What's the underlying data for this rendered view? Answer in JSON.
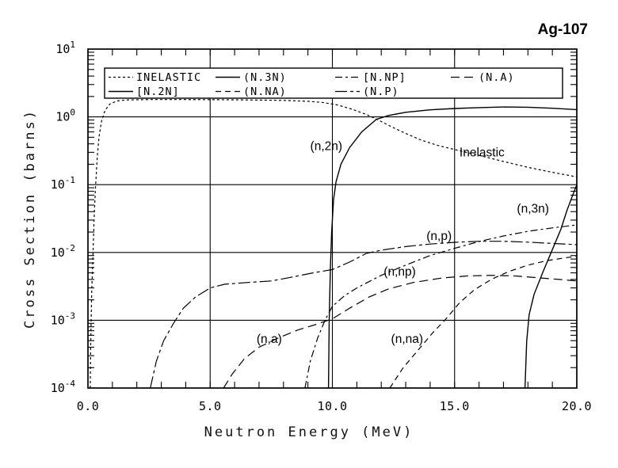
{
  "page": {
    "window_title": "Ag-107"
  },
  "chart_data": {
    "type": "line",
    "title": "Ag-107",
    "xlabel": "Neutron Energy (MeV)",
    "ylabel": "Cross Section (barns)",
    "xlim": [
      0,
      20
    ],
    "ylim": [
      0.0001,
      10
    ],
    "y_scale": "log",
    "grid": "major-lines-on",
    "x_minor_tick_step": 1,
    "x_ticks": [
      {
        "value": 0,
        "label": "0.0"
      },
      {
        "value": 5,
        "label": "5.0"
      },
      {
        "value": 10,
        "label": "10.0"
      },
      {
        "value": 15,
        "label": "15.0"
      },
      {
        "value": 20,
        "label": "20.0"
      }
    ],
    "y_ticks": [
      {
        "value": 10,
        "base": "10",
        "exp": "1"
      },
      {
        "value": 1,
        "base": "10",
        "exp": "0"
      },
      {
        "value": 0.1,
        "base": "10",
        "exp": "-1"
      },
      {
        "value": 0.01,
        "base": "10",
        "exp": "-2"
      },
      {
        "value": 0.001,
        "base": "10",
        "exp": "-3"
      },
      {
        "value": 0.0001,
        "base": "10",
        "exp": "-4"
      }
    ],
    "legend": {
      "position": "top-inside",
      "rows": 2,
      "entries": [
        {
          "series": "inelastic",
          "label": "INELASTIC",
          "row": 0,
          "col": 0
        },
        {
          "series": "n3n",
          "label": "(N.3N)",
          "row": 0,
          "col": 1
        },
        {
          "series": "nnp",
          "label": "[N.NP]",
          "row": 0,
          "col": 2
        },
        {
          "series": "na",
          "label": "(N.A)",
          "row": 0,
          "col": 3
        },
        {
          "series": "n2n",
          "label": "[N.2N]",
          "row": 1,
          "col": 0
        },
        {
          "series": "nna",
          "label": "(N.NA)",
          "row": 1,
          "col": 1
        },
        {
          "series": "np",
          "label": "(N.P)",
          "row": 1,
          "col": 2
        }
      ]
    },
    "annotations": [
      {
        "text": "(n,2n)",
        "x": 9.75,
        "y": 0.37,
        "anchor": "middle"
      },
      {
        "text": "Inelastic",
        "x": 15.2,
        "y": 0.3,
        "anchor": "start"
      },
      {
        "text": "(n,3n)",
        "x": 17.55,
        "y": 0.044,
        "anchor": "start"
      },
      {
        "text": "(n,p)",
        "x": 13.85,
        "y": 0.0175,
        "anchor": "start"
      },
      {
        "text": "(n,np)",
        "x": 12.1,
        "y": 0.0052,
        "anchor": "start"
      },
      {
        "text": "(n,a)",
        "x": 6.9,
        "y": 0.00053,
        "anchor": "start"
      },
      {
        "text": "(n,na)",
        "x": 12.4,
        "y": 0.00053,
        "anchor": "start"
      }
    ],
    "series": [
      {
        "id": "inelastic",
        "legend_label": "INELASTIC",
        "reaction": "inelastic scattering",
        "points": [
          [
            0.095,
            0.0001
          ],
          [
            0.11,
            0.0004
          ],
          [
            0.13,
            0.001
          ],
          [
            0.16,
            0.003
          ],
          [
            0.2,
            0.008
          ],
          [
            0.25,
            0.03
          ],
          [
            0.3,
            0.08
          ],
          [
            0.38,
            0.25
          ],
          [
            0.45,
            0.5
          ],
          [
            0.55,
            0.85
          ],
          [
            0.7,
            1.25
          ],
          [
            0.9,
            1.55
          ],
          [
            1.2,
            1.72
          ],
          [
            1.6,
            1.78
          ],
          [
            2.5,
            1.8
          ],
          [
            4,
            1.8
          ],
          [
            6,
            1.79
          ],
          [
            8,
            1.75
          ],
          [
            9,
            1.7
          ],
          [
            9.6,
            1.63
          ],
          [
            10.2,
            1.5
          ],
          [
            10.8,
            1.3
          ],
          [
            11.4,
            1.08
          ],
          [
            11.8,
            0.93
          ],
          [
            12.4,
            0.72
          ],
          [
            13,
            0.57
          ],
          [
            13.6,
            0.46
          ],
          [
            14.3,
            0.38
          ],
          [
            15,
            0.33
          ],
          [
            16,
            0.27
          ],
          [
            17,
            0.22
          ],
          [
            18,
            0.18
          ],
          [
            19,
            0.152
          ],
          [
            20,
            0.13
          ]
        ]
      },
      {
        "id": "n2n",
        "legend_label": "[N.2N]",
        "reaction": "(n,2n)",
        "points": [
          [
            9.84,
            0.0001
          ],
          [
            9.87,
            0.001
          ],
          [
            9.92,
            0.006
          ],
          [
            9.97,
            0.02
          ],
          [
            10.05,
            0.06
          ],
          [
            10.15,
            0.11
          ],
          [
            10.35,
            0.2
          ],
          [
            10.7,
            0.35
          ],
          [
            11.2,
            0.6
          ],
          [
            11.8,
            0.92
          ],
          [
            12.3,
            1.05
          ],
          [
            13,
            1.17
          ],
          [
            14,
            1.27
          ],
          [
            15,
            1.33
          ],
          [
            16,
            1.37
          ],
          [
            17,
            1.4
          ],
          [
            18,
            1.39
          ],
          [
            19,
            1.34
          ],
          [
            20,
            1.28
          ]
        ]
      },
      {
        "id": "n3n",
        "legend_label": "(N.3N)",
        "reaction": "(n,3n)",
        "points": [
          [
            17.88,
            0.0001
          ],
          [
            17.95,
            0.0005
          ],
          [
            18.05,
            0.0012
          ],
          [
            18.25,
            0.0024
          ],
          [
            18.6,
            0.005
          ],
          [
            19,
            0.011
          ],
          [
            19.35,
            0.022
          ],
          [
            19.6,
            0.042
          ],
          [
            19.8,
            0.065
          ],
          [
            20,
            0.1
          ]
        ]
      },
      {
        "id": "np",
        "legend_label": "(N.P)",
        "reaction": "(n,p)",
        "points": [
          [
            2.55,
            0.0001
          ],
          [
            2.8,
            0.00025
          ],
          [
            3.1,
            0.0005
          ],
          [
            3.5,
            0.0009
          ],
          [
            3.9,
            0.0015
          ],
          [
            4.4,
            0.0022
          ],
          [
            5,
            0.003
          ],
          [
            5.6,
            0.0034
          ],
          [
            6.5,
            0.0036
          ],
          [
            7.5,
            0.0038
          ],
          [
            8.3,
            0.0043
          ],
          [
            9.2,
            0.005
          ],
          [
            10,
            0.0056
          ],
          [
            10.7,
            0.0072
          ],
          [
            11.4,
            0.0097
          ],
          [
            12,
            0.0108
          ],
          [
            13,
            0.0122
          ],
          [
            14,
            0.0133
          ],
          [
            15,
            0.0141
          ],
          [
            16,
            0.0146
          ],
          [
            17,
            0.0146
          ],
          [
            18,
            0.0142
          ],
          [
            19,
            0.0136
          ],
          [
            20,
            0.013
          ]
        ]
      },
      {
        "id": "nnp",
        "legend_label": "[N.NP]",
        "reaction": "(n,np)",
        "points": [
          [
            8.88,
            0.0001
          ],
          [
            9.1,
            0.00025
          ],
          [
            9.4,
            0.00055
          ],
          [
            9.7,
            0.001
          ],
          [
            10,
            0.0016
          ],
          [
            10.5,
            0.0023
          ],
          [
            11,
            0.003
          ],
          [
            12,
            0.0046
          ],
          [
            13,
            0.0065
          ],
          [
            14,
            0.009
          ],
          [
            15,
            0.0115
          ],
          [
            16,
            0.0145
          ],
          [
            17,
            0.0175
          ],
          [
            18,
            0.0205
          ],
          [
            19,
            0.023
          ],
          [
            20,
            0.0255
          ]
        ]
      },
      {
        "id": "na",
        "legend_label": "(N.A)",
        "reaction": "(n,alpha)",
        "points": [
          [
            5.55,
            0.0001
          ],
          [
            5.9,
            0.00016
          ],
          [
            6.4,
            0.00027
          ],
          [
            7,
            0.0004
          ],
          [
            7.8,
            0.00055
          ],
          [
            8.6,
            0.00072
          ],
          [
            9.3,
            0.00086
          ],
          [
            10,
            0.00105
          ],
          [
            10.7,
            0.0015
          ],
          [
            11.5,
            0.0022
          ],
          [
            12.3,
            0.0029
          ],
          [
            13.3,
            0.0036
          ],
          [
            14.5,
            0.0042
          ],
          [
            15.5,
            0.0045
          ],
          [
            16.5,
            0.0046
          ],
          [
            17.5,
            0.0045
          ],
          [
            18.5,
            0.0042
          ],
          [
            19.3,
            0.004
          ],
          [
            20,
            0.0038
          ]
        ]
      },
      {
        "id": "nna",
        "legend_label": "(N.NA)",
        "reaction": "(n,n alpha)",
        "points": [
          [
            12.35,
            0.0001
          ],
          [
            12.9,
            0.0002
          ],
          [
            13.5,
            0.00036
          ],
          [
            14.1,
            0.00065
          ],
          [
            14.6,
            0.001
          ],
          [
            15.2,
            0.0018
          ],
          [
            15.8,
            0.0028
          ],
          [
            16.5,
            0.004
          ],
          [
            17.2,
            0.0052
          ],
          [
            18,
            0.0065
          ],
          [
            18.8,
            0.0076
          ],
          [
            19.5,
            0.0083
          ],
          [
            20,
            0.0088
          ]
        ]
      }
    ]
  }
}
